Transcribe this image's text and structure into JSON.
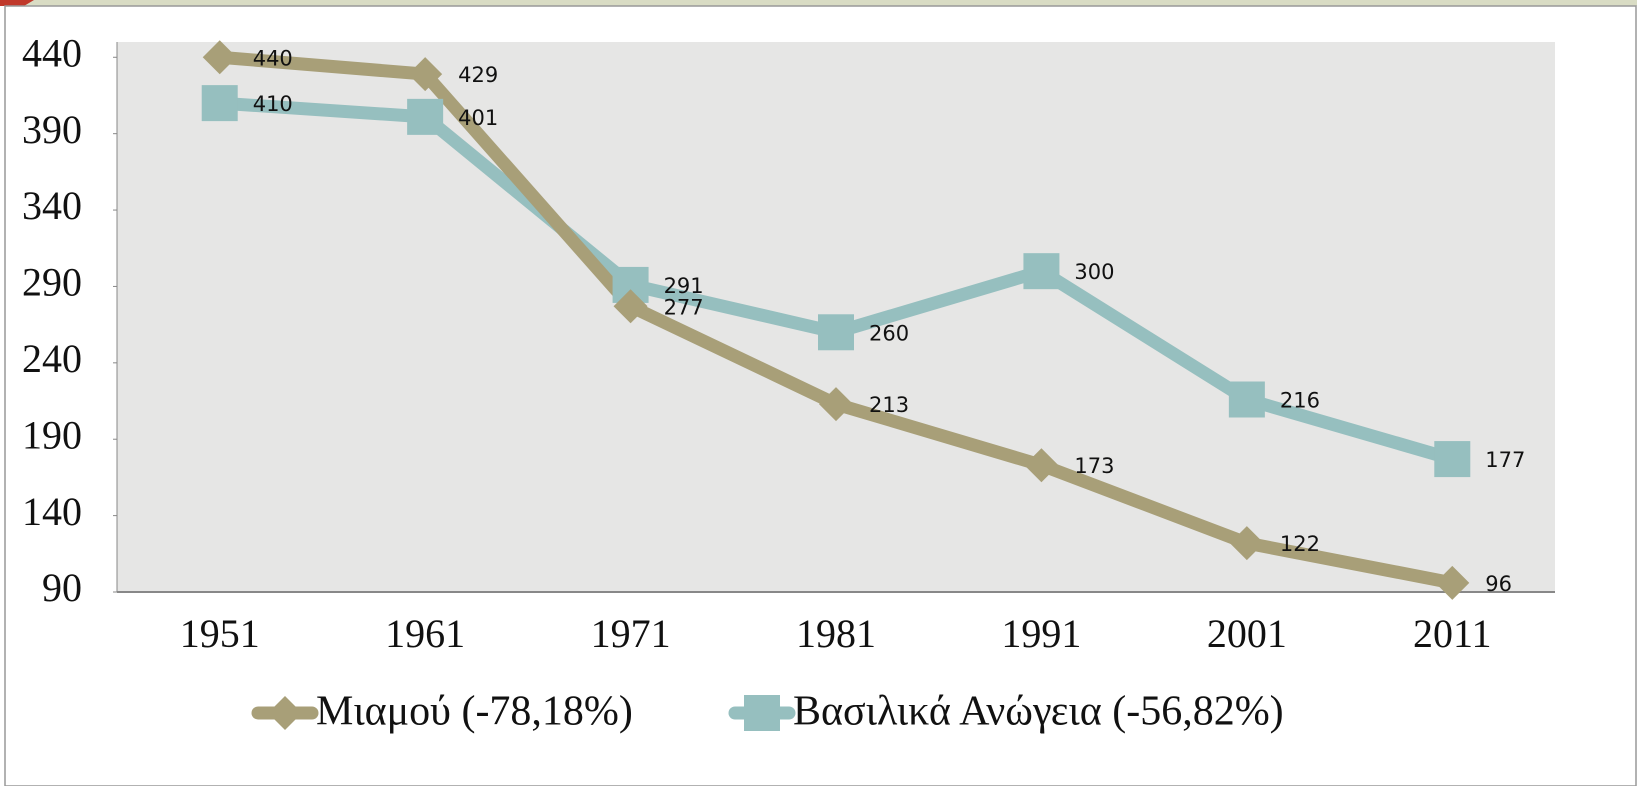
{
  "chart_data": {
    "type": "line",
    "categories": [
      "1951",
      "1961",
      "1971",
      "1981",
      "1991",
      "2001",
      "2011"
    ],
    "series": [
      {
        "name": "Μιαμού (-78,18%)",
        "color": "#a89f78",
        "marker": "diamond",
        "values": [
          440,
          429,
          277,
          213,
          173,
          122,
          96
        ]
      },
      {
        "name": "Βασιλικά Ανώγεια (-56,82%)",
        "color": "#96bfbf",
        "marker": "square",
        "values": [
          410,
          401,
          291,
          260,
          300,
          216,
          177
        ]
      }
    ],
    "ylim": [
      90,
      450
    ],
    "yticks": [
      90,
      140,
      190,
      240,
      290,
      340,
      390,
      440
    ],
    "legend": "bottom"
  }
}
